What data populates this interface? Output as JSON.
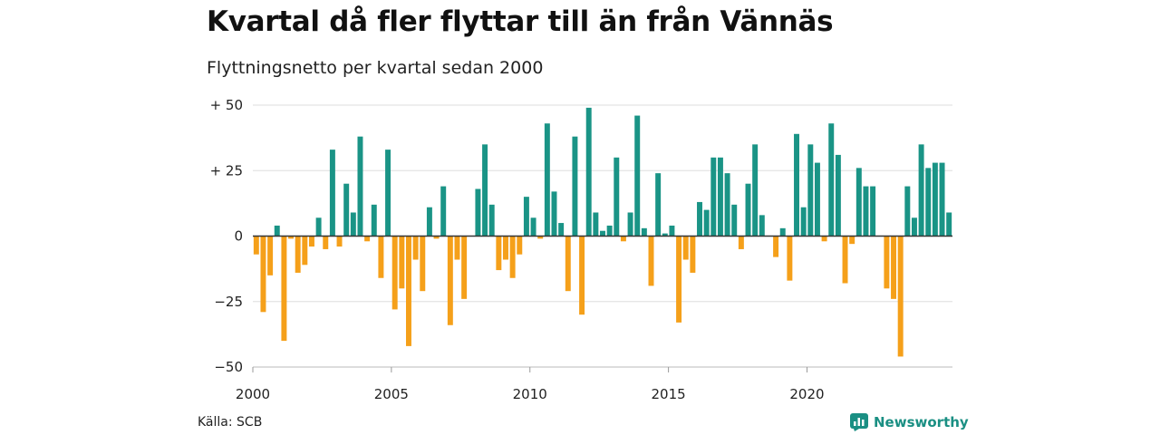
{
  "header": {
    "title": "Kvartal då fler flyttar till än från Vännäs",
    "subtitle": "Flyttningsnetto per kvartal sedan 2000"
  },
  "footer": {
    "source": "Källa: SCB",
    "brand": "Newsworthy"
  },
  "colors": {
    "positive": "#1a9486",
    "negative": "#f5a01a",
    "grid": "#dddddd",
    "zero_line": "#333333",
    "brand": "#1a8f83"
  },
  "icons": {
    "brand": "bar-chart-icon"
  },
  "chart_data": {
    "type": "bar",
    "title": "Kvartal då fler flyttar till än från Vännäs",
    "subtitle": "Flyttningsnetto per kvartal sedan 2000",
    "xlabel": "",
    "ylabel": "",
    "ylim": [
      -50,
      50
    ],
    "yticks": [
      50,
      25,
      0,
      -25,
      -50
    ],
    "ytick_labels": [
      "+ 50",
      "+ 25",
      "0",
      "−25",
      "−50"
    ],
    "xticks": [
      2000,
      2005,
      2010,
      2015,
      2020
    ],
    "xtick_labels": [
      "2000",
      "2005",
      "2010",
      "2015",
      "2020"
    ],
    "grid": true,
    "legend": false,
    "start_year": 2000,
    "periods_per_year": 4,
    "values": [
      -7,
      -29,
      -15,
      4,
      -40,
      -1,
      -14,
      -11,
      -4,
      7,
      -5,
      33,
      -4,
      20,
      9,
      38,
      -2,
      12,
      -16,
      33,
      -28,
      -20,
      -42,
      -9,
      -21,
      11,
      -1,
      19,
      -34,
      -9,
      -24,
      0,
      18,
      35,
      12,
      -13,
      -9,
      -16,
      -7,
      15,
      7,
      -1,
      43,
      17,
      5,
      -21,
      38,
      -30,
      49,
      9,
      2,
      4,
      30,
      -2,
      9,
      46,
      3,
      -19,
      24,
      1,
      4,
      -33,
      -9,
      -14,
      13,
      10,
      30,
      30,
      24,
      12,
      -5,
      20,
      35,
      8,
      0,
      -8,
      3,
      -17,
      39,
      11,
      35,
      28,
      -2,
      43,
      31,
      -18,
      -3,
      26,
      19,
      19,
      0,
      -20,
      -24,
      -46,
      19,
      7,
      35,
      26,
      28,
      28,
      9
    ]
  }
}
